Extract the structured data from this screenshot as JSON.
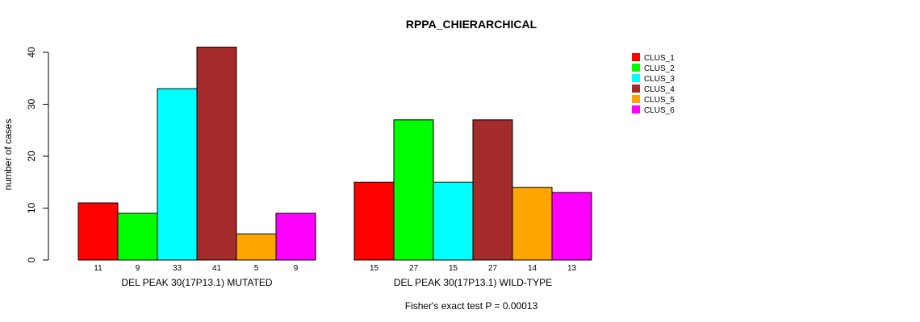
{
  "chart_data": {
    "type": "bar",
    "title": "RPPA_CHIERARCHICAL",
    "ylabel": "number of cases",
    "ylim": [
      0,
      40
    ],
    "yticks": [
      0,
      10,
      20,
      30,
      40
    ],
    "grid": false,
    "legend_position": "top-right",
    "groups": [
      {
        "label": "DEL PEAK 30(17P13.1) MUTATED",
        "values": [
          11,
          9,
          33,
          41,
          5,
          9
        ],
        "value_labels": [
          "11",
          "9",
          "33",
          "41",
          "5",
          "9"
        ]
      },
      {
        "label": "DEL PEAK 30(17P13.1) WILD-TYPE",
        "values": [
          15,
          27,
          15,
          27,
          14,
          13
        ],
        "value_labels": [
          "15",
          "27",
          "15",
          "27",
          "14",
          "13"
        ]
      }
    ],
    "series": [
      {
        "name": "CLUS_1",
        "color": "#ff0000"
      },
      {
        "name": "CLUS_2",
        "color": "#00ff00"
      },
      {
        "name": "CLUS_3",
        "color": "#00ffff"
      },
      {
        "name": "CLUS_4",
        "color": "#a52a2a"
      },
      {
        "name": "CLUS_5",
        "color": "#ffa500"
      },
      {
        "name": "CLUS_6",
        "color": "#ff00ff"
      }
    ],
    "footnote": "Fisher's exact test P = 0.00013"
  }
}
